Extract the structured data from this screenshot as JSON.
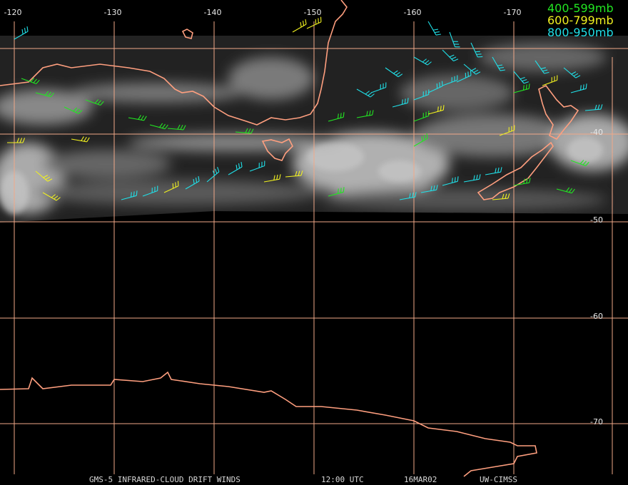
{
  "map": {
    "lon_labels": [
      "-120",
      "-130",
      "-140",
      "-150",
      "-160",
      "-170"
    ],
    "lat_labels": [
      "-40",
      "-50",
      "-60",
      "-70"
    ]
  },
  "legend": [
    {
      "label": "400-599mb",
      "color": "#22e622"
    },
    {
      "label": "600-799mb",
      "color": "#f0f020"
    },
    {
      "label": "800-950mb",
      "color": "#20e0e8"
    }
  ],
  "footer": {
    "title": "GMS-5 INFRARED-CLOUD DRIFT WINDS",
    "time": "12:00 UTC",
    "date": "16MAR02",
    "source": "UW-CIMSS"
  }
}
